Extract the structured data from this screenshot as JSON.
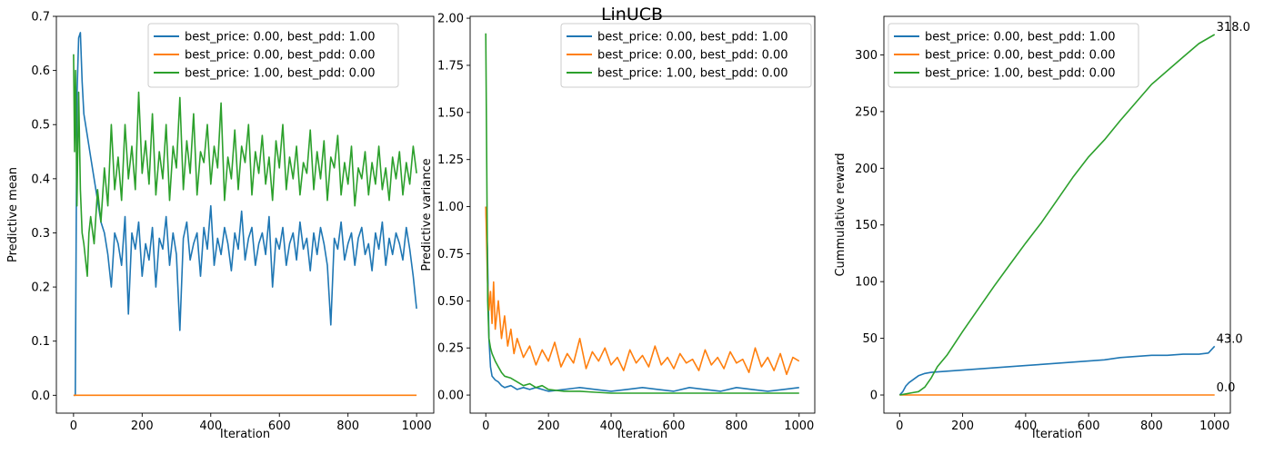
{
  "suptitle": "LinUCB",
  "colors": {
    "series1": "#1f77b4",
    "series2": "#ff7f0e",
    "series3": "#2ca02c"
  },
  "chart_data": [
    {
      "type": "line",
      "title": "",
      "xlabel": "Iteration",
      "ylabel": "Predictive mean",
      "xlim": [
        -50,
        1050
      ],
      "ylim": [
        -0.033,
        0.7
      ],
      "xticks": [
        0,
        200,
        400,
        600,
        800,
        1000
      ],
      "yticks": [
        0.0,
        0.1,
        0.2,
        0.3,
        0.4,
        0.5,
        0.6,
        0.7
      ],
      "ytick_labels": [
        "0.0",
        "0.1",
        "0.2",
        "0.3",
        "0.4",
        "0.5",
        "0.6",
        "0.7"
      ],
      "legend_position": "upper right",
      "grid": false,
      "series": [
        {
          "name": "best_price: 0.00, best_pdd: 1.00",
          "color": "#1f77b4",
          "x": [
            0,
            5,
            10,
            15,
            20,
            25,
            30,
            40,
            50,
            60,
            70,
            80,
            90,
            100,
            110,
            120,
            130,
            140,
            150,
            160,
            170,
            180,
            190,
            200,
            210,
            220,
            230,
            240,
            250,
            260,
            270,
            280,
            290,
            300,
            310,
            320,
            330,
            340,
            350,
            360,
            370,
            380,
            390,
            400,
            410,
            420,
            430,
            440,
            450,
            460,
            470,
            480,
            490,
            500,
            510,
            520,
            530,
            540,
            550,
            560,
            570,
            580,
            590,
            600,
            610,
            620,
            630,
            640,
            650,
            660,
            670,
            680,
            690,
            700,
            710,
            720,
            730,
            740,
            750,
            760,
            770,
            780,
            790,
            800,
            810,
            820,
            830,
            840,
            850,
            860,
            870,
            880,
            890,
            900,
            910,
            920,
            930,
            940,
            950,
            960,
            970,
            980,
            990,
            1000
          ],
          "y": [
            0.0,
            0.0,
            0.55,
            0.66,
            0.67,
            0.58,
            0.52,
            0.48,
            0.44,
            0.4,
            0.36,
            0.32,
            0.3,
            0.26,
            0.2,
            0.3,
            0.28,
            0.24,
            0.33,
            0.15,
            0.3,
            0.27,
            0.32,
            0.22,
            0.28,
            0.25,
            0.31,
            0.2,
            0.29,
            0.27,
            0.33,
            0.24,
            0.3,
            0.26,
            0.12,
            0.29,
            0.32,
            0.25,
            0.28,
            0.3,
            0.22,
            0.31,
            0.27,
            0.35,
            0.24,
            0.29,
            0.26,
            0.31,
            0.28,
            0.23,
            0.3,
            0.27,
            0.34,
            0.25,
            0.29,
            0.31,
            0.24,
            0.28,
            0.3,
            0.26,
            0.33,
            0.2,
            0.29,
            0.27,
            0.31,
            0.24,
            0.28,
            0.3,
            0.25,
            0.32,
            0.27,
            0.29,
            0.23,
            0.3,
            0.26,
            0.31,
            0.28,
            0.24,
            0.13,
            0.29,
            0.27,
            0.32,
            0.25,
            0.28,
            0.3,
            0.24,
            0.29,
            0.31,
            0.26,
            0.28,
            0.23,
            0.3,
            0.27,
            0.32,
            0.24,
            0.29,
            0.26,
            0.3,
            0.28,
            0.25,
            0.31,
            0.27,
            0.22,
            0.16
          ]
        },
        {
          "name": "best_price: 0.00, best_pdd: 0.00",
          "color": "#ff7f0e",
          "x": [
            0,
            1000
          ],
          "y": [
            0.0,
            0.0
          ]
        },
        {
          "name": "best_price: 1.00, best_pdd: 0.00",
          "color": "#2ca02c",
          "x": [
            0,
            3,
            6,
            10,
            15,
            20,
            25,
            30,
            35,
            40,
            45,
            50,
            60,
            70,
            80,
            90,
            100,
            110,
            120,
            130,
            140,
            150,
            160,
            170,
            180,
            190,
            200,
            210,
            220,
            230,
            240,
            250,
            260,
            270,
            280,
            290,
            300,
            310,
            320,
            330,
            340,
            350,
            360,
            370,
            380,
            390,
            400,
            410,
            420,
            430,
            440,
            450,
            460,
            470,
            480,
            490,
            500,
            510,
            520,
            530,
            540,
            550,
            560,
            570,
            580,
            590,
            600,
            610,
            620,
            630,
            640,
            650,
            660,
            670,
            680,
            690,
            700,
            710,
            720,
            730,
            740,
            750,
            760,
            770,
            780,
            790,
            800,
            810,
            820,
            830,
            840,
            850,
            860,
            870,
            880,
            890,
            900,
            910,
            920,
            930,
            940,
            950,
            960,
            970,
            980,
            990,
            1000
          ],
          "y": [
            0.63,
            0.45,
            0.6,
            0.35,
            0.56,
            0.38,
            0.3,
            0.28,
            0.25,
            0.22,
            0.3,
            0.33,
            0.28,
            0.38,
            0.32,
            0.42,
            0.35,
            0.5,
            0.38,
            0.44,
            0.36,
            0.5,
            0.4,
            0.46,
            0.38,
            0.56,
            0.41,
            0.47,
            0.39,
            0.52,
            0.37,
            0.45,
            0.4,
            0.5,
            0.36,
            0.46,
            0.42,
            0.55,
            0.38,
            0.47,
            0.41,
            0.52,
            0.37,
            0.45,
            0.43,
            0.5,
            0.39,
            0.46,
            0.42,
            0.54,
            0.36,
            0.44,
            0.4,
            0.49,
            0.38,
            0.46,
            0.43,
            0.5,
            0.37,
            0.45,
            0.41,
            0.48,
            0.39,
            0.44,
            0.36,
            0.47,
            0.42,
            0.5,
            0.38,
            0.44,
            0.4,
            0.46,
            0.37,
            0.43,
            0.41,
            0.49,
            0.38,
            0.45,
            0.4,
            0.47,
            0.36,
            0.44,
            0.42,
            0.48,
            0.37,
            0.43,
            0.39,
            0.46,
            0.35,
            0.42,
            0.4,
            0.45,
            0.37,
            0.43,
            0.39,
            0.46,
            0.38,
            0.42,
            0.36,
            0.44,
            0.4,
            0.45,
            0.37,
            0.43,
            0.39,
            0.46,
            0.41
          ]
        }
      ]
    },
    {
      "type": "line",
      "title": "",
      "xlabel": "Iteration",
      "ylabel": "Predictive variance",
      "xlim": [
        -50,
        1050
      ],
      "ylim": [
        -0.096,
        2.01
      ],
      "xticks": [
        0,
        200,
        400,
        600,
        800,
        1000
      ],
      "yticks": [
        0.0,
        0.25,
        0.5,
        0.75,
        1.0,
        1.25,
        1.5,
        1.75,
        2.0
      ],
      "ytick_labels": [
        "0.00",
        "0.25",
        "0.50",
        "0.75",
        "1.00",
        "1.25",
        "1.50",
        "1.75",
        "2.00"
      ],
      "legend_position": "upper right",
      "grid": false,
      "series": [
        {
          "name": "best_price: 0.00, best_pdd: 1.00",
          "color": "#1f77b4",
          "x": [
            0,
            5,
            10,
            15,
            20,
            30,
            40,
            50,
            60,
            80,
            100,
            120,
            140,
            160,
            180,
            200,
            250,
            300,
            350,
            400,
            450,
            500,
            550,
            600,
            650,
            700,
            750,
            800,
            850,
            900,
            950,
            1000
          ],
          "y": [
            1.0,
            0.78,
            0.3,
            0.15,
            0.1,
            0.08,
            0.07,
            0.05,
            0.04,
            0.05,
            0.03,
            0.04,
            0.03,
            0.04,
            0.03,
            0.02,
            0.03,
            0.04,
            0.03,
            0.02,
            0.03,
            0.04,
            0.03,
            0.02,
            0.04,
            0.03,
            0.02,
            0.04,
            0.03,
            0.02,
            0.03,
            0.04
          ]
        },
        {
          "name": "best_price: 0.00, best_pdd: 0.00",
          "color": "#ff7f0e",
          "x": [
            0,
            5,
            10,
            15,
            20,
            25,
            30,
            40,
            50,
            60,
            70,
            80,
            90,
            100,
            120,
            140,
            160,
            180,
            200,
            220,
            240,
            260,
            280,
            300,
            320,
            340,
            360,
            380,
            400,
            420,
            440,
            460,
            480,
            500,
            520,
            540,
            560,
            580,
            600,
            620,
            640,
            660,
            680,
            700,
            720,
            740,
            760,
            780,
            800,
            820,
            840,
            860,
            880,
            900,
            920,
            940,
            960,
            980,
            1000
          ],
          "y": [
            1.0,
            0.62,
            0.45,
            0.55,
            0.38,
            0.6,
            0.35,
            0.5,
            0.3,
            0.42,
            0.26,
            0.35,
            0.22,
            0.3,
            0.2,
            0.26,
            0.16,
            0.24,
            0.18,
            0.28,
            0.15,
            0.22,
            0.17,
            0.3,
            0.14,
            0.23,
            0.18,
            0.25,
            0.16,
            0.2,
            0.13,
            0.24,
            0.17,
            0.21,
            0.15,
            0.26,
            0.16,
            0.2,
            0.14,
            0.22,
            0.17,
            0.19,
            0.13,
            0.24,
            0.16,
            0.2,
            0.14,
            0.23,
            0.17,
            0.19,
            0.12,
            0.25,
            0.15,
            0.2,
            0.13,
            0.22,
            0.11,
            0.2,
            0.18
          ]
        },
        {
          "name": "best_price: 1.00, best_pdd: 0.00",
          "color": "#2ca02c",
          "x": [
            0,
            3,
            6,
            10,
            15,
            20,
            30,
            40,
            50,
            60,
            80,
            100,
            120,
            140,
            160,
            180,
            200,
            250,
            300,
            350,
            400,
            500,
            600,
            700,
            800,
            900,
            1000
          ],
          "y": [
            1.92,
            1.2,
            0.5,
            0.3,
            0.25,
            0.22,
            0.18,
            0.15,
            0.12,
            0.1,
            0.09,
            0.07,
            0.05,
            0.06,
            0.04,
            0.05,
            0.03,
            0.02,
            0.02,
            0.015,
            0.01,
            0.01,
            0.01,
            0.01,
            0.01,
            0.01,
            0.01
          ]
        }
      ]
    },
    {
      "type": "line",
      "title": "",
      "xlabel": "Iteration",
      "ylabel": "Cummulative reward",
      "xlim": [
        -50,
        1050
      ],
      "ylim": [
        -16,
        334
      ],
      "xticks": [
        0,
        200,
        400,
        600,
        800,
        1000
      ],
      "yticks": [
        0,
        50,
        100,
        150,
        200,
        250,
        300
      ],
      "ytick_labels": [
        "0",
        "50",
        "100",
        "150",
        "200",
        "250",
        "300"
      ],
      "legend_position": "upper left",
      "grid": false,
      "annotations": [
        {
          "text": "318.0",
          "x": 1000,
          "y": 318
        },
        {
          "text": "43.0",
          "x": 1000,
          "y": 43
        },
        {
          "text": "0.0",
          "x": 1000,
          "y": 0
        }
      ],
      "series": [
        {
          "name": "best_price: 0.00, best_pdd: 1.00",
          "color": "#1f77b4",
          "x": [
            0,
            10,
            20,
            30,
            40,
            50,
            60,
            80,
            100,
            150,
            200,
            250,
            300,
            350,
            400,
            450,
            500,
            550,
            600,
            650,
            700,
            750,
            800,
            850,
            900,
            950,
            980,
            1000
          ],
          "y": [
            0,
            3,
            8,
            11,
            13,
            15,
            17,
            19,
            20,
            21,
            22,
            23,
            24,
            25,
            26,
            27,
            28,
            29,
            30,
            31,
            33,
            34,
            35,
            35,
            36,
            36,
            37,
            43
          ]
        },
        {
          "name": "best_price: 0.00, best_pdd: 0.00",
          "color": "#ff7f0e",
          "x": [
            0,
            1000
          ],
          "y": [
            0,
            0
          ]
        },
        {
          "name": "best_price: 1.00, best_pdd: 0.00",
          "color": "#2ca02c",
          "x": [
            0,
            20,
            40,
            60,
            80,
            100,
            120,
            150,
            200,
            250,
            300,
            350,
            400,
            450,
            500,
            550,
            600,
            650,
            700,
            750,
            800,
            850,
            900,
            950,
            1000
          ],
          "y": [
            0,
            1,
            2,
            3,
            7,
            15,
            25,
            35,
            56,
            76,
            96,
            115,
            134,
            152,
            172,
            192,
            210,
            225,
            242,
            258,
            274,
            286,
            298,
            310,
            318
          ]
        }
      ]
    }
  ]
}
